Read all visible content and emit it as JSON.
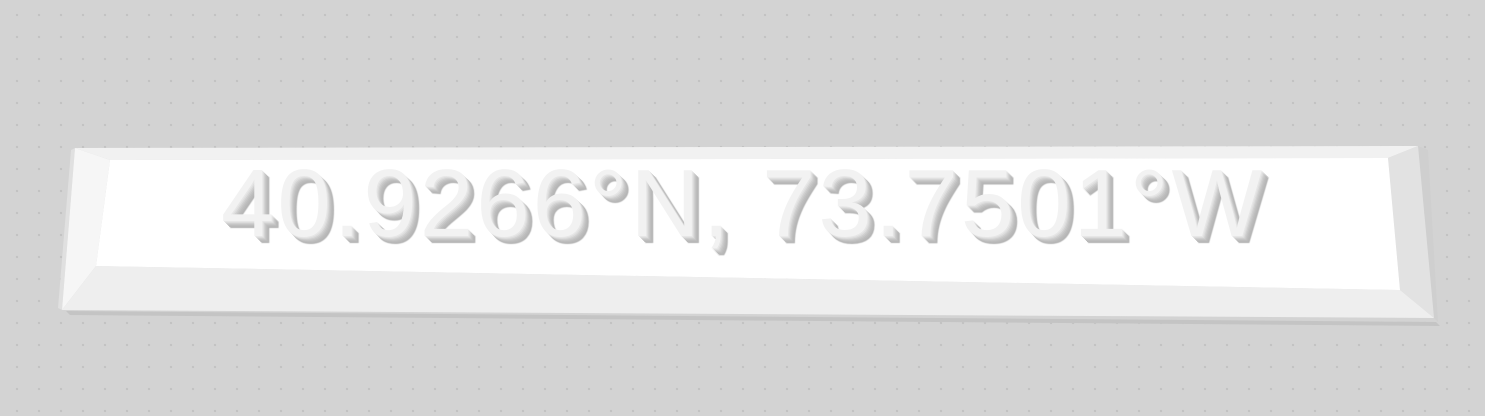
{
  "plaque": {
    "text": "40.9266°N, 73.7501°W"
  },
  "colors": {
    "background": "#d3d3d3",
    "grid_dot": "#c2c2c2",
    "plaque_top": "#ffffff",
    "plaque_bevel_light": "#f4f4f4",
    "plaque_bevel_shade": "#e2e2e2",
    "engraving_shadow": "#b8b8b8"
  }
}
